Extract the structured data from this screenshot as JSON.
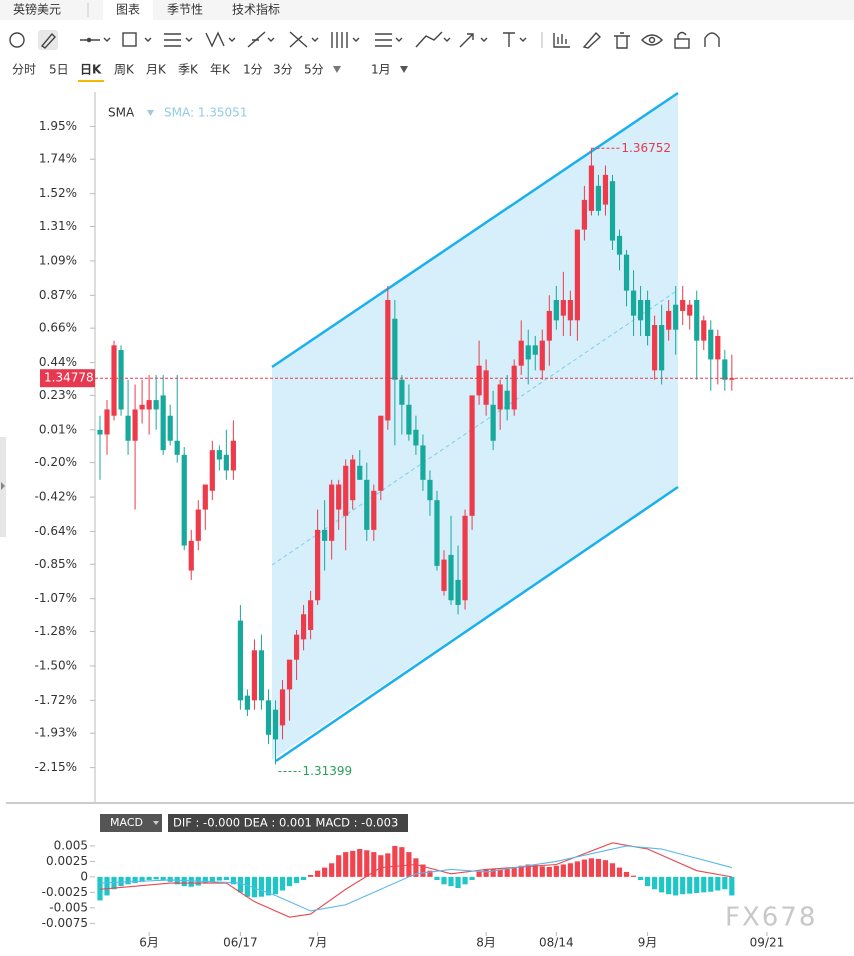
{
  "header": {
    "symbol": "英镑美元",
    "tabs": [
      "图表",
      "季节性",
      "技术指标"
    ]
  },
  "periods": [
    "分时",
    "5日",
    "日K",
    "周K",
    "月K",
    "季K",
    "年K",
    "1分",
    "3分",
    "5分",
    "1月"
  ],
  "watermark": "FX678",
  "chart_data": [
    {
      "type": "candlestick",
      "legend_name": "SMA",
      "legend_value": "SMA: 1.35051",
      "last_price_label": "1.34778",
      "high_label": "1.36752",
      "low_label": "1.31399",
      "up_color": "#ee3b4b",
      "down_color": "#16a99c",
      "ylim": [
        -2.37,
        2.17
      ],
      "yticks": [
        {
          "value": 1.95,
          "label": "1.95%"
        },
        {
          "value": 1.74,
          "label": "1.74%"
        },
        {
          "value": 1.52,
          "label": "1.52%"
        },
        {
          "value": 1.31,
          "label": "1.31%"
        },
        {
          "value": 1.09,
          "label": "1.09%"
        },
        {
          "value": 0.87,
          "label": "0.87%"
        },
        {
          "value": 0.66,
          "label": "0.66%"
        },
        {
          "value": 0.44,
          "label": "0.44%"
        },
        {
          "value": 0.23,
          "label": "0.23%"
        },
        {
          "value": 0.01,
          "label": "0.01%"
        },
        {
          "value": -0.2,
          "label": "-0.20%"
        },
        {
          "value": -0.42,
          "label": "-0.42%"
        },
        {
          "value": -0.64,
          "label": "-0.64%"
        },
        {
          "value": -0.85,
          "label": "-0.85%"
        },
        {
          "value": -1.07,
          "label": "-1.07%"
        },
        {
          "value": -1.28,
          "label": "-1.28%"
        },
        {
          "value": -1.5,
          "label": "-1.50%"
        },
        {
          "value": -1.72,
          "label": "-1.72%"
        },
        {
          "value": -1.93,
          "label": "-1.93%"
        },
        {
          "value": -2.15,
          "label": "-2.15%"
        }
      ],
      "xlim": [
        -0.71,
        107.4
      ],
      "xticks": [
        {
          "value": 7,
          "label": "6月"
        },
        {
          "value": 20,
          "label": "06/17"
        },
        {
          "value": 31,
          "label": "7月"
        },
        {
          "value": 55,
          "label": "8月"
        },
        {
          "value": 65,
          "label": "08/14"
        },
        {
          "value": 78,
          "label": "9月"
        },
        {
          "value": 95,
          "label": "09/21"
        }
      ],
      "candles": [
        [
          0.01,
          0.1,
          -0.31,
          -0.02
        ],
        [
          -0.02,
          0.2,
          -0.15,
          0.14
        ],
        [
          0.1,
          0.58,
          0.07,
          0.55
        ],
        [
          0.52,
          0.55,
          0.1,
          0.14
        ],
        [
          0.1,
          0.33,
          -0.15,
          -0.06
        ],
        [
          -0.06,
          0.3,
          -0.5,
          0.14
        ],
        [
          0.14,
          0.33,
          0.05,
          0.17
        ],
        [
          0.14,
          0.36,
          -0.02,
          0.2
        ],
        [
          0.2,
          0.36,
          0.01,
          0.14
        ],
        [
          0.23,
          0.36,
          -0.15,
          -0.12
        ],
        [
          0.1,
          0.17,
          -0.09,
          -0.06
        ],
        [
          -0.06,
          0.36,
          -0.2,
          -0.15
        ],
        [
          -0.15,
          -0.1,
          -0.76,
          -0.73
        ],
        [
          -0.89,
          -0.63,
          -0.95,
          -0.7
        ],
        [
          -0.7,
          -0.44,
          -0.76,
          -0.5
        ],
        [
          -0.5,
          -0.34,
          -0.63,
          -0.34
        ],
        [
          -0.38,
          -0.06,
          -0.44,
          -0.12
        ],
        [
          -0.12,
          -0.09,
          -0.25,
          -0.18
        ],
        [
          -0.15,
          0.01,
          -0.31,
          -0.25
        ],
        [
          -0.25,
          0.07,
          -0.31,
          -0.06
        ],
        [
          -1.21,
          -1.11,
          -1.78,
          -1.72
        ],
        [
          -1.69,
          -1.65,
          -1.82,
          -1.78
        ],
        [
          -1.72,
          -1.33,
          -1.78,
          -1.4
        ],
        [
          -1.4,
          -1.3,
          -1.78,
          -1.72
        ],
        [
          -1.72,
          -1.65,
          -2.0,
          -1.94
        ],
        [
          -1.78,
          -1.72,
          -2.13,
          -1.97
        ],
        [
          -1.88,
          -1.59,
          -1.97,
          -1.65
        ],
        [
          -1.65,
          -1.46,
          -1.85,
          -1.46
        ],
        [
          -1.46,
          -1.27,
          -1.59,
          -1.3
        ],
        [
          -1.33,
          -1.11,
          -1.4,
          -1.17
        ],
        [
          -1.27,
          -1.02,
          -1.33,
          -1.08
        ],
        [
          -1.08,
          -0.5,
          -1.11,
          -0.63
        ],
        [
          -0.63,
          -0.44,
          -0.89,
          -0.7
        ],
        [
          -0.7,
          -0.31,
          -0.82,
          -0.34
        ],
        [
          -0.5,
          -0.31,
          -0.63,
          -0.34
        ],
        [
          -0.54,
          -0.18,
          -0.76,
          -0.22
        ],
        [
          -0.44,
          -0.15,
          -0.5,
          -0.18
        ],
        [
          -0.22,
          -0.12,
          -0.31,
          -0.31
        ],
        [
          -0.31,
          -0.2,
          -0.7,
          -0.63
        ],
        [
          -0.63,
          -0.34,
          -0.7,
          -0.38
        ],
        [
          -0.38,
          0.07,
          -0.44,
          0.1
        ],
        [
          0.07,
          0.93,
          0.01,
          0.84
        ],
        [
          0.72,
          0.84,
          -0.09,
          0.33
        ],
        [
          0.33,
          0.36,
          -0.02,
          0.17
        ],
        [
          0.17,
          0.3,
          -0.06,
          -0.02
        ],
        [
          0.01,
          0.1,
          -0.15,
          -0.09
        ],
        [
          -0.09,
          -0.02,
          -0.38,
          -0.31
        ],
        [
          -0.31,
          -0.25,
          -0.54,
          -0.44
        ],
        [
          -0.44,
          -0.38,
          -0.89,
          -0.86
        ],
        [
          -1.02,
          -0.76,
          -1.05,
          -0.82
        ],
        [
          -0.79,
          -0.54,
          -1.11,
          -1.08
        ],
        [
          -0.95,
          -0.73,
          -1.17,
          -1.11
        ],
        [
          -1.08,
          -0.5,
          -1.14,
          -0.54
        ],
        [
          -0.54,
          0.2,
          -0.63,
          0.23
        ],
        [
          0.23,
          0.58,
          0.17,
          0.42
        ],
        [
          0.17,
          0.46,
          0.1,
          0.39
        ],
        [
          0.17,
          0.26,
          -0.12,
          -0.06
        ],
        [
          0.14,
          0.33,
          0.01,
          0.3
        ],
        [
          0.26,
          0.36,
          0.07,
          0.14
        ],
        [
          0.14,
          0.46,
          0.1,
          0.42
        ],
        [
          0.42,
          0.71,
          0.36,
          0.58
        ],
        [
          0.55,
          0.65,
          0.3,
          0.46
        ],
        [
          0.55,
          0.61,
          0.39,
          0.49
        ],
        [
          0.39,
          0.65,
          0.33,
          0.58
        ],
        [
          0.58,
          0.87,
          0.42,
          0.77
        ],
        [
          0.84,
          0.93,
          0.65,
          0.71
        ],
        [
          0.74,
          1.02,
          0.61,
          0.84
        ],
        [
          0.71,
          0.9,
          0.61,
          0.84
        ],
        [
          0.71,
          1.29,
          0.58,
          1.29
        ],
        [
          1.29,
          1.57,
          1.22,
          1.48
        ],
        [
          1.41,
          1.81,
          1.38,
          1.7
        ],
        [
          1.57,
          1.64,
          1.38,
          1.41
        ],
        [
          1.45,
          1.7,
          1.38,
          1.64
        ],
        [
          1.6,
          1.64,
          1.16,
          1.22
        ],
        [
          1.25,
          1.29,
          1.03,
          1.13
        ],
        [
          1.13,
          1.16,
          0.8,
          0.9
        ],
        [
          0.9,
          1.03,
          0.61,
          0.74
        ],
        [
          0.84,
          0.93,
          0.61,
          0.71
        ],
        [
          0.84,
          0.9,
          0.55,
          0.61
        ],
        [
          0.39,
          0.74,
          0.33,
          0.68
        ],
        [
          0.68,
          0.81,
          0.3,
          0.39
        ],
        [
          0.65,
          0.84,
          0.58,
          0.77
        ],
        [
          0.81,
          0.93,
          0.49,
          0.65
        ],
        [
          0.77,
          0.93,
          0.68,
          0.84
        ],
        [
          0.74,
          0.84,
          0.65,
          0.81
        ],
        [
          0.84,
          0.9,
          0.33,
          0.58
        ],
        [
          0.58,
          0.74,
          0.52,
          0.71
        ],
        [
          0.65,
          0.71,
          0.26,
          0.46
        ],
        [
          0.46,
          0.65,
          0.3,
          0.61
        ],
        [
          0.46,
          0.52,
          0.26,
          0.33
        ],
        [
          0.33,
          0.49,
          0.26,
          0.34
        ]
      ]
    },
    {
      "type": "macd",
      "name": "MACD",
      "legend": "DIF : -0.000  DEA : 0.001  MACD : -0.003",
      "up_color": "#f2444f",
      "down_color": "#1fc6c8",
      "ylim": [
        -0.0089,
        0.0108
      ],
      "yticks": [
        0.005,
        0.0025,
        0,
        -0.0025,
        -0.005,
        -0.0075
      ],
      "bars": [
        -0.0038,
        -0.003,
        -0.002,
        -0.0015,
        -0.0012,
        -0.001,
        -0.0008,
        -0.0005,
        -0.0004,
        -0.0006,
        -0.0008,
        -0.0012,
        -0.0015,
        -0.0016,
        -0.0014,
        -0.001,
        -0.0008,
        -0.0006,
        -0.0005,
        -0.0012,
        -0.0025,
        -0.0032,
        -0.0033,
        -0.0032,
        -0.003,
        -0.0028,
        -0.0022,
        -0.0015,
        -0.001,
        -0.0005,
        0.0003,
        0.001,
        0.0015,
        0.0022,
        0.0035,
        0.004,
        0.0042,
        0.0045,
        0.0043,
        0.004,
        0.0035,
        0.0038,
        0.005,
        0.0048,
        0.004,
        0.003,
        0.002,
        0.001,
        -0.0005,
        -0.0012,
        -0.0015,
        -0.0018,
        -0.0012,
        -0.0005,
        0.0008,
        0.0012,
        0.0013,
        0.0012,
        0.0013,
        0.0015,
        0.0018,
        0.002,
        0.0019,
        0.0017,
        0.0016,
        0.0018,
        0.002,
        0.0022,
        0.0025,
        0.0028,
        0.003,
        0.0029,
        0.0027,
        0.0022,
        0.0015,
        0.0008,
        0.0002,
        -0.0005,
        -0.0015,
        -0.002,
        -0.0025,
        -0.0028,
        -0.003,
        -0.0028,
        -0.0027,
        -0.0026,
        -0.0025,
        -0.0024,
        -0.0022,
        -0.002,
        -0.003
      ],
      "series": [
        {
          "color": "#e8474f",
          "x": [
            0,
            10,
            18,
            22,
            27,
            30,
            35,
            40,
            45,
            50,
            55,
            65,
            73,
            78,
            85,
            90
          ],
          "values": [
            -0.002,
            -0.001,
            -0.001,
            -0.004,
            -0.0065,
            -0.006,
            -0.002,
            0.0015,
            0.002,
            0.0005,
            0.0012,
            0.002,
            0.0055,
            0.0045,
            0.001,
            0
          ]
        },
        {
          "color": "#5bb8e8",
          "x": [
            0,
            10,
            20,
            25,
            30,
            35,
            40,
            45,
            50,
            55,
            65,
            75,
            80,
            90
          ],
          "values": [
            -0.001,
            -0.0005,
            -0.001,
            -0.003,
            -0.0055,
            -0.0045,
            -0.002,
            0.0005,
            0.0012,
            0.0008,
            0.0025,
            0.005,
            0.0045,
            0.0015
          ]
        }
      ]
    }
  ]
}
